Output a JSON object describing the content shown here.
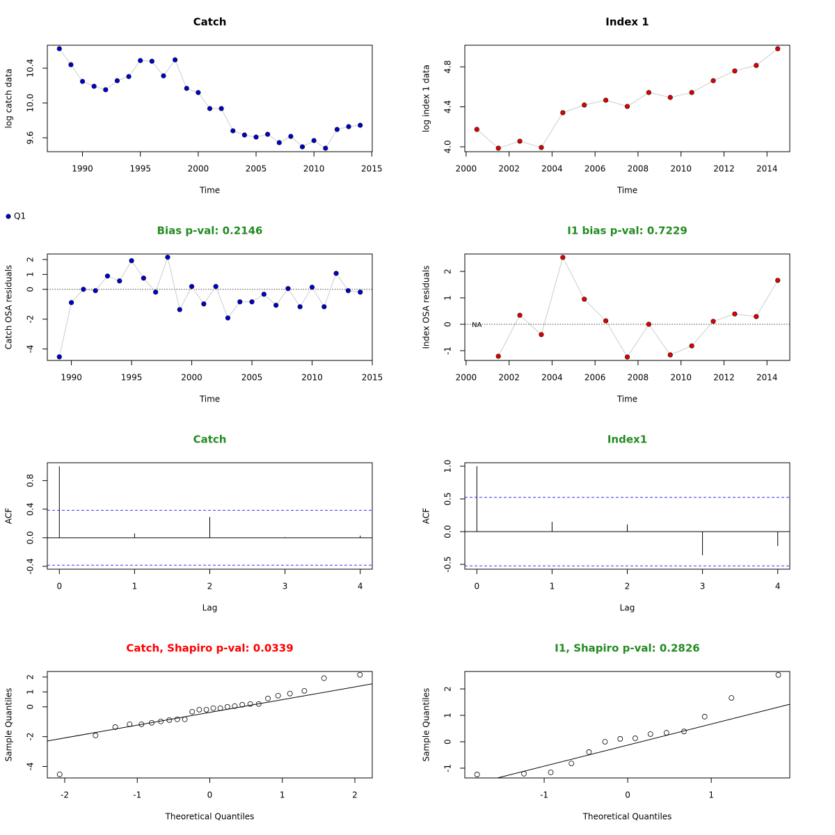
{
  "chart_data": [
    {
      "type": "line",
      "title": "Catch",
      "title_color": "#000000",
      "xlabel": "Time",
      "ylabel": "log catch data",
      "legend": "Q1",
      "x": [
        1988,
        1989,
        1990,
        1991,
        1992,
        1993,
        1994,
        1995,
        1996,
        1997,
        1998,
        1999,
        2000,
        2001,
        2002,
        2003,
        2004,
        2005,
        2006,
        2007,
        2008,
        2009,
        2010,
        2011,
        2012,
        2013,
        2014
      ],
      "values": [
        10.624,
        10.44,
        10.248,
        10.192,
        10.152,
        10.256,
        10.304,
        10.488,
        10.48,
        10.312,
        10.496,
        10.168,
        10.12,
        9.936,
        9.936,
        9.68,
        9.632,
        9.608,
        9.64,
        9.544,
        9.616,
        9.496,
        9.568,
        9.48,
        9.696,
        9.728,
        9.744
      ],
      "color": "#0000cd",
      "line_color": "#cccccc",
      "xlim": [
        1986.96,
        2015.04
      ],
      "xticks": [
        1990,
        1995,
        2000,
        2005,
        2010,
        2015
      ],
      "ylim": [
        9.44,
        10.664
      ],
      "yticks": [
        9.6,
        {
          "value": 10,
          "label": "10.0"
        },
        10.4
      ]
    },
    {
      "type": "line",
      "title": "Index 1",
      "title_color": "#000000",
      "xlabel": "Time",
      "ylabel": "log index 1 data",
      "x": [
        2000.5,
        2001.5,
        2002.5,
        2003.5,
        2004.5,
        2005.5,
        2006.5,
        2007.5,
        2008.5,
        2009.5,
        2010.5,
        2011.5,
        2012.5,
        2013.5,
        2014.5
      ],
      "values": [
        4.174,
        3.986,
        4.056,
        3.993,
        4.341,
        4.418,
        4.466,
        4.404,
        4.543,
        4.494,
        4.543,
        4.661,
        4.759,
        4.814,
        4.981
      ],
      "color": "#e00000",
      "line_color": "#cccccc",
      "xlim": [
        1999.94,
        2015.06
      ],
      "xticks": [
        2000,
        2002,
        2004,
        2006,
        2008,
        2010,
        2012,
        2014
      ],
      "ylim": [
        3.951,
        5.016
      ],
      "yticks": [
        {
          "value": 4,
          "label": "4.0"
        },
        4.4,
        4.8
      ]
    },
    {
      "type": "line",
      "title": "Bias p-val: 0.2146",
      "title_color": "#228b22",
      "xlabel": "Time",
      "ylabel": "Catch OSA residuals",
      "x": [
        1989,
        1990,
        1991,
        1992,
        1993,
        1994,
        1995,
        1996,
        1997,
        1998,
        1999,
        2000,
        2001,
        2002,
        2003,
        2004,
        2005,
        2006,
        2007,
        2008,
        2009,
        2010,
        2011,
        2012,
        2013,
        2014
      ],
      "values": [
        -4.53,
        -0.89,
        0,
        -0.09,
        0.89,
        0.56,
        1.92,
        0.75,
        -0.19,
        2.15,
        -1.36,
        0.19,
        -0.98,
        0.19,
        -1.92,
        -0.84,
        -0.84,
        -0.33,
        -1.07,
        0.05,
        -1.17,
        0.14,
        -1.17,
        1.07,
        -0.09,
        -0.19
      ],
      "color": "#0000cd",
      "line_color": "#cccccc",
      "hline": 0,
      "xlim": [
        1988,
        2015
      ],
      "xticks": [
        1990,
        1995,
        2000,
        2005,
        2010,
        2015
      ],
      "ylim": [
        -4.77,
        2.37
      ],
      "yticks": [
        -4,
        -2,
        0,
        1,
        2
      ]
    },
    {
      "type": "line",
      "title": "I1 bias p-val: 0.7229",
      "title_color": "#228b22",
      "xlabel": "Time",
      "ylabel": "Index OSA residuals",
      "x": [
        2000.5,
        2001.5,
        2002.5,
        2003.5,
        2004.5,
        2005.5,
        2006.5,
        2007.5,
        2008.5,
        2009.5,
        2010.5,
        2011.5,
        2012.5,
        2013.5,
        2014.5
      ],
      "values": [
        null,
        -1.21,
        0.34,
        -0.39,
        2.53,
        0.95,
        0.13,
        -1.24,
        0,
        -1.16,
        -0.82,
        0.11,
        0.39,
        0.29,
        1.66
      ],
      "color": "#e00000",
      "line_color": "#cccccc",
      "hline": 0,
      "annotations": [
        {
          "text": "NA",
          "x": 2000.5,
          "y": 0
        }
      ],
      "xlim": [
        1999.94,
        2015.06
      ],
      "xticks": [
        2000,
        2002,
        2004,
        2006,
        2008,
        2010,
        2012,
        2014
      ],
      "ylim": [
        -1.37,
        2.66
      ],
      "yticks": [
        -1,
        0,
        1,
        2
      ]
    },
    {
      "type": "acf",
      "title": "Catch",
      "title_color": "#228b22",
      "xlabel": "Lag",
      "ylabel": "ACF",
      "x": [
        0,
        1,
        2,
        3,
        4
      ],
      "values": [
        1.0,
        0.06,
        0.29,
        0.01,
        0.03
      ],
      "ci_lines": [
        0.384,
        -0.384
      ],
      "ci_color": "#3333ff",
      "xlim": [
        -0.16,
        4.16
      ],
      "xticks": [
        0,
        1,
        2,
        3,
        4
      ],
      "ylim": [
        -0.44,
        1.05
      ],
      "yticks": [
        -0.4,
        {
          "value": 0,
          "label": "0.0"
        },
        0.4,
        0.8
      ]
    },
    {
      "type": "acf",
      "title": "Index1",
      "title_color": "#228b22",
      "xlabel": "Lag",
      "ylabel": "ACF",
      "x": [
        0,
        1,
        2,
        3,
        4
      ],
      "values": [
        1.0,
        0.15,
        0.11,
        -0.36,
        -0.22
      ],
      "ci_lines": [
        0.524,
        -0.524
      ],
      "ci_color": "#3333ff",
      "xlim": [
        -0.16,
        4.16
      ],
      "xticks": [
        0,
        1,
        2,
        3,
        4
      ],
      "ylim": [
        -0.574,
        1.053
      ],
      "yticks": [
        -0.5,
        {
          "value": 0,
          "label": "0.0"
        },
        0.5,
        {
          "value": 1,
          "label": "1.0"
        }
      ]
    },
    {
      "type": "qq",
      "title": "Catch, Shapiro p-val: 0.0339",
      "title_color": "#ff0000",
      "xlabel": "Theoretical Quantiles",
      "ylabel": "Sample Quantiles",
      "x": [
        -2.07,
        -1.575,
        -1.304,
        -1.105,
        -0.942,
        -0.801,
        -0.674,
        -0.558,
        -0.448,
        -0.344,
        -0.243,
        -0.145,
        -0.048,
        0.048,
        0.145,
        0.243,
        0.344,
        0.448,
        0.558,
        0.674,
        0.801,
        0.942,
        1.105,
        1.304,
        1.575,
        2.07
      ],
      "values": [
        -4.53,
        -1.92,
        -1.36,
        -1.17,
        -1.17,
        -1.07,
        -0.98,
        -0.89,
        -0.84,
        -0.84,
        -0.33,
        -0.19,
        -0.19,
        -0.09,
        -0.09,
        0,
        0.05,
        0.14,
        0.19,
        0.19,
        0.56,
        0.75,
        0.89,
        1.07,
        1.92,
        2.15
      ],
      "qqline": {
        "intercept": -0.375,
        "slope": 0.855
      },
      "xlim": [
        -2.24,
        2.24
      ],
      "xticks": [
        -2,
        -1,
        0,
        1,
        2
      ],
      "ylim": [
        -4.77,
        2.37
      ],
      "yticks": [
        -4,
        -2,
        0,
        1,
        2
      ]
    },
    {
      "type": "qq",
      "title": "I1, Shapiro p-val: 0.2826",
      "title_color": "#228b22",
      "xlabel": "Theoretical Quantiles",
      "ylabel": "Sample Quantiles",
      "x": [
        -1.803,
        -1.242,
        -0.921,
        -0.674,
        -0.464,
        -0.272,
        -0.09,
        0.09,
        0.272,
        0.464,
        0.674,
        0.921,
        1.242,
        1.803
      ],
      "values": [
        -1.24,
        -1.21,
        -1.16,
        -0.82,
        -0.39,
        0,
        0.11,
        0.13,
        0.29,
        0.34,
        0.39,
        0.95,
        1.66,
        2.53
      ],
      "qqline": {
        "intercept": -0.127,
        "slope": 0.797
      },
      "xlim": [
        -1.95,
        1.94
      ],
      "xticks": [
        -1,
        0,
        1
      ],
      "ylim": [
        -1.37,
        2.66
      ],
      "yticks": [
        -1,
        0,
        1,
        2
      ]
    }
  ]
}
